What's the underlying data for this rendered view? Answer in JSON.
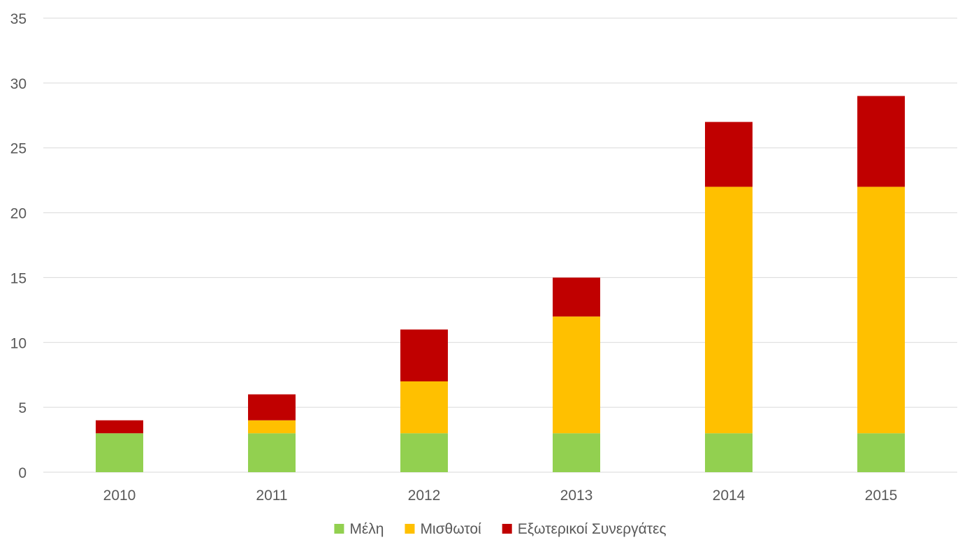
{
  "chart_data": {
    "type": "bar",
    "stacked": true,
    "title": "",
    "xlabel": "",
    "ylabel": "",
    "categories": [
      "2010",
      "2011",
      "2012",
      "2013",
      "2014",
      "2015"
    ],
    "ylim": [
      0,
      35
    ],
    "yticks": [
      0,
      5,
      10,
      15,
      20,
      25,
      30,
      35
    ],
    "grid": true,
    "legend_position": "bottom",
    "series": [
      {
        "name": "Μέλη",
        "color": "#92D050",
        "values": [
          3,
          3,
          3,
          3,
          3,
          3
        ]
      },
      {
        "name": "Μισθωτοί",
        "color": "#FFC000",
        "values": [
          0,
          1,
          4,
          9,
          19,
          19
        ]
      },
      {
        "name": "Εξωτερικοί Συνεργάτες",
        "color": "#C00000",
        "values": [
          1,
          2,
          4,
          3,
          5,
          7
        ]
      }
    ]
  }
}
